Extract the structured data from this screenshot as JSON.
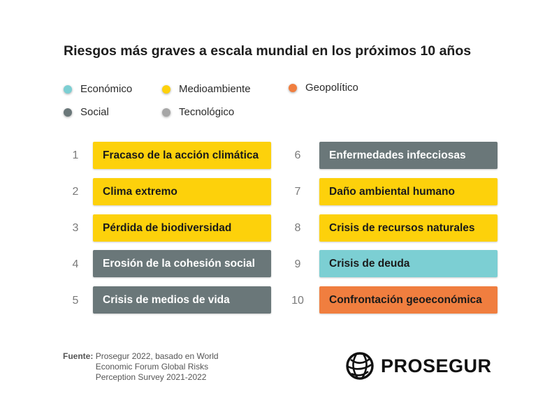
{
  "title": "Riesgos más graves a escala mundial en los próximos 10 años",
  "colors": {
    "economico": "#7ccfd3",
    "medioambiente": "#fdd10b",
    "geopolitico": "#f07e3f",
    "social": "#6a7779",
    "tecnologico": "#a6a6a6"
  },
  "legend": [
    {
      "label": "Económico",
      "category": "economico"
    },
    {
      "label": "Medioambiente",
      "category": "medioambiente"
    },
    {
      "label": "Geopolítico",
      "category": "geopolitico"
    },
    {
      "label": "Social",
      "category": "social"
    },
    {
      "label": "Tecnológico",
      "category": "tecnologico"
    }
  ],
  "risks": [
    {
      "rank": "1",
      "label": "Fracaso de la acción climática",
      "category": "medioambiente"
    },
    {
      "rank": "2",
      "label": "Clima extremo",
      "category": "medioambiente"
    },
    {
      "rank": "3",
      "label": "Pérdida de biodiversidad",
      "category": "medioambiente"
    },
    {
      "rank": "4",
      "label": "Erosión de la cohesión social",
      "category": "social"
    },
    {
      "rank": "5",
      "label": "Crisis de medios de vida",
      "category": "social"
    },
    {
      "rank": "6",
      "label": "Enfermedades infecciosas",
      "category": "social"
    },
    {
      "rank": "7",
      "label": "Daño ambiental humano",
      "category": "medioambiente"
    },
    {
      "rank": "8",
      "label": "Crisis de recursos naturales",
      "category": "medioambiente"
    },
    {
      "rank": "9",
      "label": "Crisis de deuda",
      "category": "economico"
    },
    {
      "rank": "10",
      "label": "Confrontación geoeconómica",
      "category": "geopolitico"
    }
  ],
  "source": {
    "label": "Fuente:",
    "text": "Prosegur 2022, basado en World Economic Forum Global Risks Perception Survey 2021-2022"
  },
  "logo": {
    "text": "PROSEGUR",
    "icon": "globe-icon"
  }
}
